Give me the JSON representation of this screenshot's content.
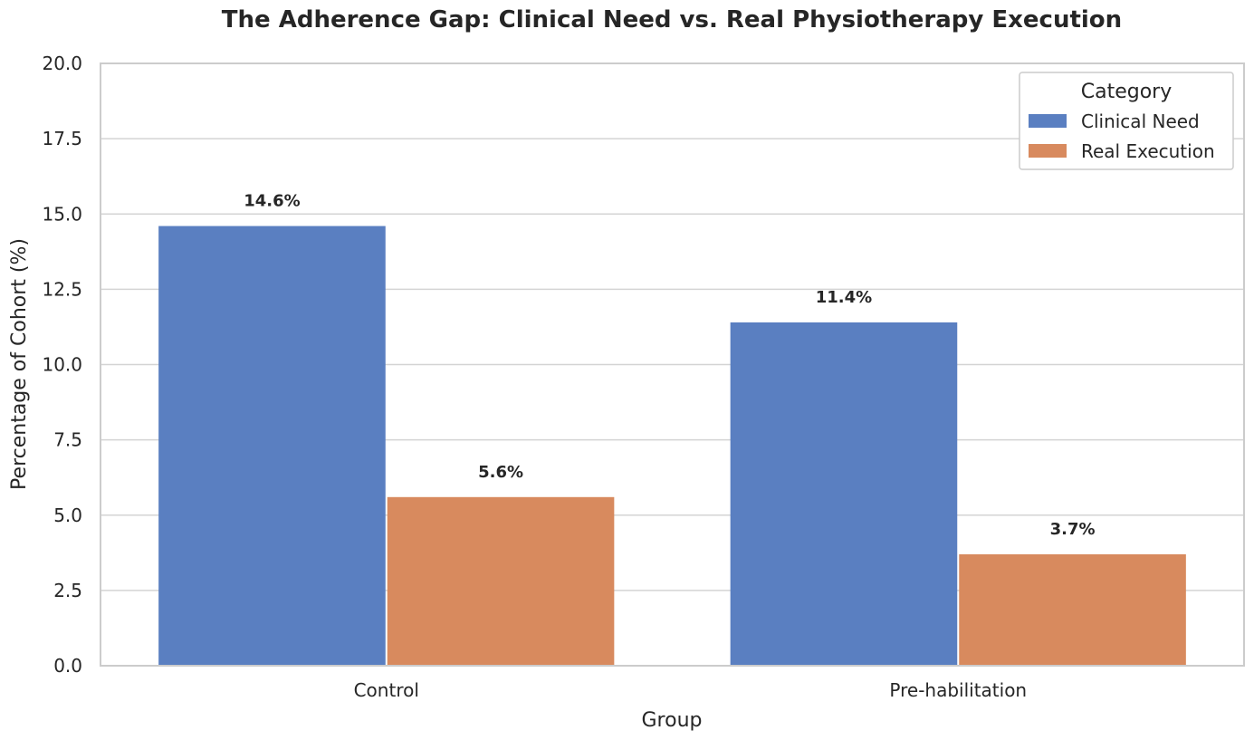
{
  "chart_data": {
    "type": "bar",
    "title": "The Adherence Gap: Clinical Need vs. Real Physiotherapy Execution",
    "xlabel": "Group",
    "ylabel": "Percentage of Cohort (%)",
    "ylim": [
      0,
      20
    ],
    "yticks": [
      "0.0",
      "2.5",
      "5.0",
      "7.5",
      "10.0",
      "12.5",
      "15.0",
      "17.5",
      "20.0"
    ],
    "ytick_values": [
      0,
      2.5,
      5,
      7.5,
      10,
      12.5,
      15,
      17.5,
      20
    ],
    "grid": true,
    "categories": [
      "Control",
      "Pre-habilitation"
    ],
    "series": [
      {
        "name": "Clinical Need",
        "values": [
          14.6,
          11.4
        ],
        "labels": [
          "14.6%",
          "11.4%"
        ],
        "color": "#5A7FC1"
      },
      {
        "name": "Real Execution",
        "values": [
          5.6,
          3.7
        ],
        "labels": [
          "5.6%",
          "3.7%"
        ],
        "color": "#D88A5E"
      }
    ],
    "legend": {
      "title": "Category",
      "position": "top-right"
    }
  }
}
